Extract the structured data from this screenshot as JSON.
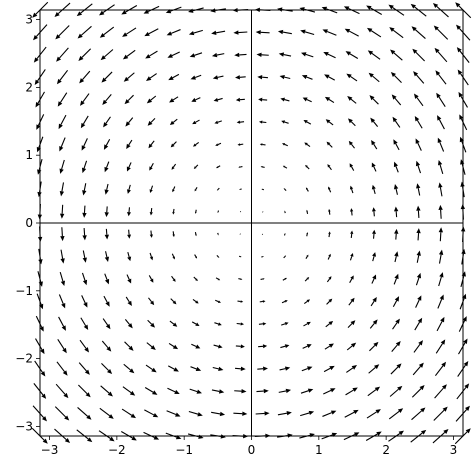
{
  "chart_data": {
    "type": "vector_field",
    "title": "",
    "xlabel": "",
    "ylabel": "",
    "field": {
      "u": "-y",
      "v": "x",
      "description": "rotational field, arrows circulate counterclockwise about the origin, magnitude grows with distance"
    },
    "grid_points_per_axis": 20,
    "xlim": [
      -3.14159,
      3.14159
    ],
    "ylim": [
      -3.14159,
      3.14159
    ],
    "x_ticks": [
      -3,
      -2,
      -1,
      0,
      1,
      2,
      3
    ],
    "y_ticks": [
      -3,
      -2,
      -1,
      0,
      1,
      2,
      3
    ],
    "x_tick_labels": [
      "−3",
      "−2",
      "−1",
      "0",
      "1",
      "2",
      "3"
    ],
    "y_tick_labels": [
      "−3",
      "−2",
      "−1",
      "0",
      "1",
      "2",
      "3"
    ],
    "axes_through_origin": true,
    "grid": false,
    "arrow_color": "#000000"
  }
}
